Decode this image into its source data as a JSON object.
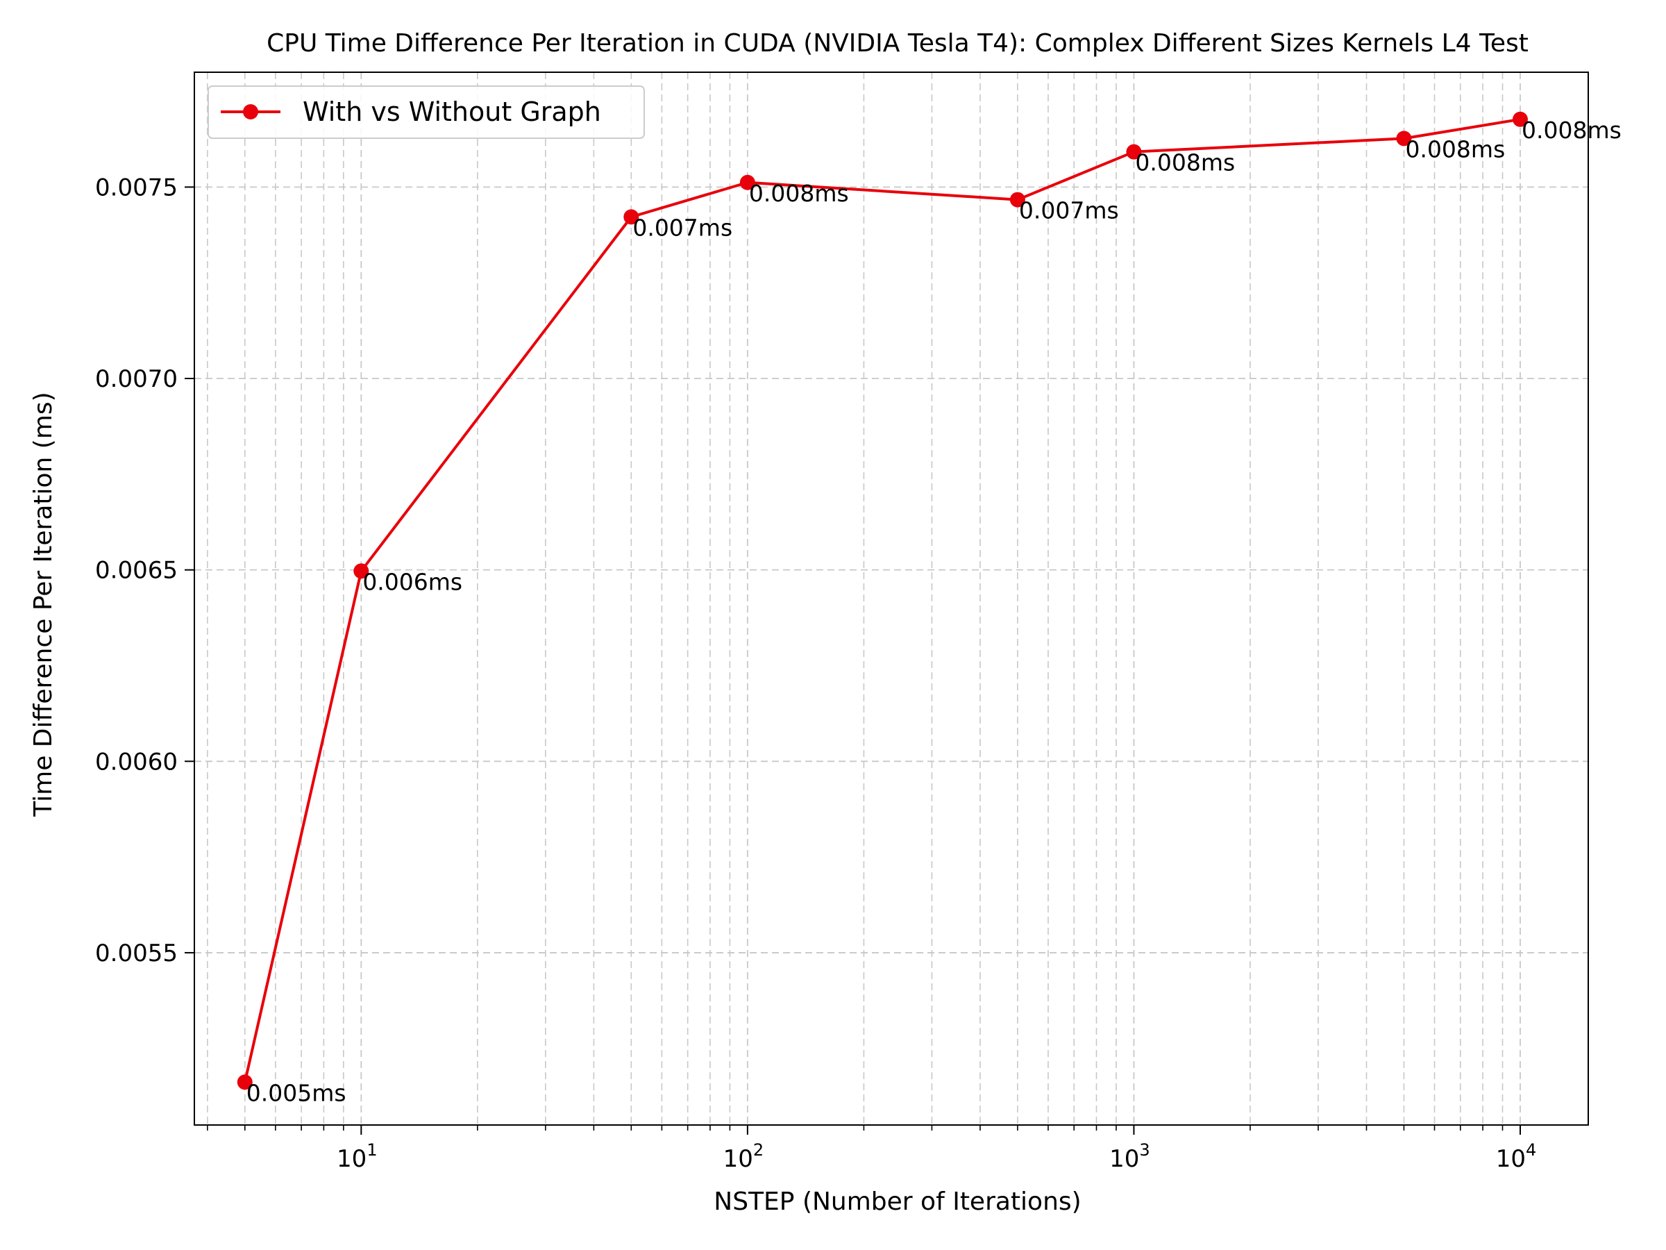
{
  "chart_data": {
    "type": "line",
    "title": "CPU Time Difference Per Iteration in CUDA (NVIDIA Tesla T4): Complex Different Sizes Kernels L4 Test",
    "xlabel": "NSTEP (Number of Iterations)",
    "ylabel": "Time Difference Per Iteration (ms)",
    "xscale": "log",
    "xlim": [
      3.7,
      15000
    ],
    "ylim": [
      0.00505,
      0.0078
    ],
    "x_ticks": [
      {
        "value": 10,
        "base": "10",
        "exp": "1"
      },
      {
        "value": 100,
        "base": "10",
        "exp": "2"
      },
      {
        "value": 1000,
        "base": "10",
        "exp": "3"
      },
      {
        "value": 10000,
        "base": "10",
        "exp": "4"
      }
    ],
    "y_ticks": [
      {
        "value": 0.0055,
        "label": "0.0055"
      },
      {
        "value": 0.006,
        "label": "0.0060"
      },
      {
        "value": 0.0065,
        "label": "0.0065"
      },
      {
        "value": 0.007,
        "label": "0.0070"
      },
      {
        "value": 0.0075,
        "label": "0.0075"
      }
    ],
    "grid": true,
    "legend_position": "top-left",
    "series": [
      {
        "name": "With vs Without Graph",
        "color": "#e8000b",
        "x": [
          5,
          10,
          50,
          100,
          500,
          1000,
          5000,
          10000
        ],
        "y": [
          0.005162,
          0.006497,
          0.007422,
          0.007512,
          0.007467,
          0.007592,
          0.007627,
          0.007677
        ],
        "labels": [
          "0.005ms",
          "0.006ms",
          "0.007ms",
          "0.008ms",
          "0.007ms",
          "0.008ms",
          "0.008ms",
          "0.008ms"
        ]
      }
    ]
  }
}
